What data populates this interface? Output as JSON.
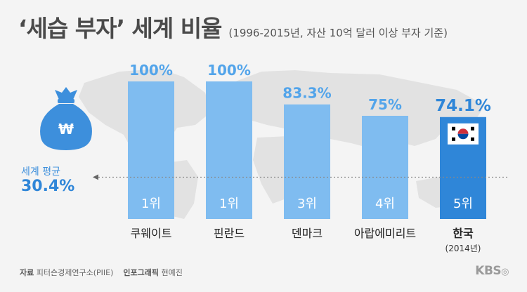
{
  "header": {
    "title": "‘세습 부자’ 세계 비율",
    "subtitle": "(1996-2015년, 자산 10억 달러 이상 부자 기준)"
  },
  "average": {
    "label": "세계 평균",
    "value_text": "30.4%",
    "value": 30.4,
    "icon": "money-bag-icon",
    "icon_symbol": "₩"
  },
  "chart_data": {
    "type": "bar",
    "categories": [
      "쿠웨이트",
      "핀란드",
      "덴마크",
      "아랍에미리트",
      "한국"
    ],
    "category_notes": [
      "",
      "",
      "",
      "",
      "(2014년)"
    ],
    "values": [
      100,
      100,
      83.3,
      75,
      74.1
    ],
    "value_labels": [
      "100%",
      "100%",
      "83.3%",
      "75%",
      "74.1%"
    ],
    "rank_labels": [
      "1위",
      "1위",
      "3위",
      "4위",
      "5위"
    ],
    "reference_line": 30.4,
    "highlight_index": 4,
    "ylim": [
      0,
      100
    ],
    "colors": {
      "bar": "#7fbcf0",
      "highlight_bar": "#2f86d8",
      "value_label": "#52a4ea",
      "highlight_value_label": "#2f86d8",
      "reference_line": "#888888"
    }
  },
  "footer": {
    "source_label": "자료",
    "source": "피터슨경제연구소(PIIE)",
    "graphic_label": "인포그래픽",
    "graphic_author": "현예진"
  },
  "logo": {
    "text": "KBS",
    "mark": "◎"
  }
}
